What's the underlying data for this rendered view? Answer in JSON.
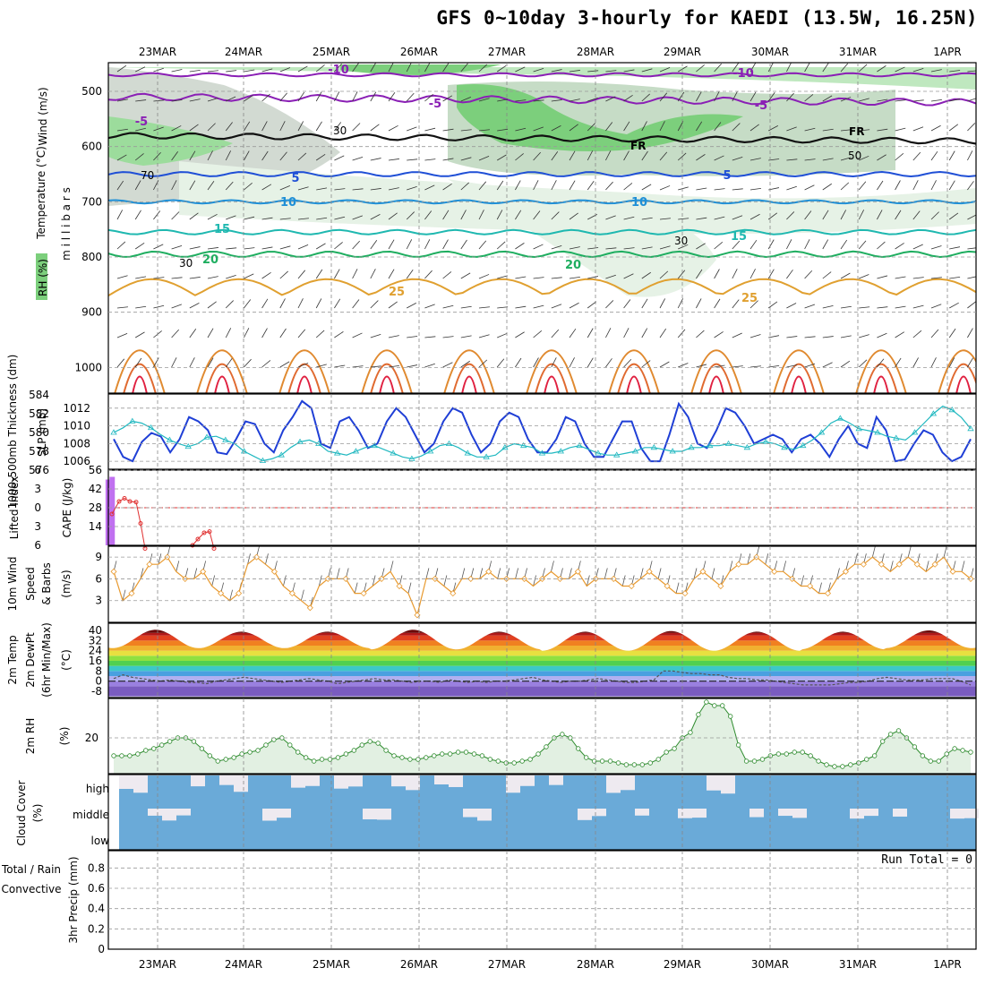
{
  "title": "GFS 0~10day 3-hourly for KAEDI (13.5W, 16.25N)",
  "dates": [
    "23MAR",
    "24MAR",
    "25MAR",
    "26MAR",
    "27MAR",
    "28MAR",
    "29MAR",
    "30MAR",
    "31MAR",
    "1APR"
  ],
  "run_total": "Run Total = 0",
  "panel_labels": {
    "upper_wind": "Wind (m/s)",
    "upper_temp": "Temperature (°C)",
    "upper_mb": "m i l l i b a r s",
    "upper_rh": "RH (%)",
    "thickness": "1000-500mb Thickness (dm)",
    "slp": "SLP (mb)",
    "lifted": "Lifted Index",
    "cape": "CAPE (J/kg)",
    "wind10": "10m Wind",
    "wind10b": "Speed",
    "wind10c": "& Barbs",
    "wind10u": "(m/s)",
    "t2m_a": "2m Temp",
    "t2m_b": "2m DewPt",
    "t2m_c": "(6hr Min/Max)",
    "t2m_u": "(°C)",
    "rh2m": "2m RH",
    "rh2m_u": "(%)",
    "cloud": "Cloud Cover",
    "cloud_u": "(%)",
    "precip_a": "Total / Rain",
    "precip_b": "Convective",
    "precip_c": "3hr Precip (mm)"
  },
  "contour_labels": {
    "m10": "-10",
    "m5": "-5",
    "p5": "5",
    "p10": "10",
    "p15": "15",
    "p20": "20",
    "p25": "25",
    "fr": "FR",
    "rh30": "30",
    "rh50": "50",
    "rh70": "70"
  },
  "colors": {
    "slp": "#1f3fd6",
    "thickness": "#20b8c0",
    "lifted": "#e03030",
    "cape": "#c070f0",
    "wind": "#e89a30",
    "rh2m": "#2e8b2e",
    "cloud": "#6aaad8",
    "cloud_gap": "#eeeaf0"
  },
  "chart_data": [
    {
      "panel": "upper-air cross section",
      "type": "heatmap",
      "ylabel": "millibars",
      "yticks": [
        500,
        600,
        700,
        800,
        900,
        1000
      ],
      "isotherms_C": [
        -10,
        -5,
        0,
        5,
        10,
        15,
        20,
        25
      ],
      "freezing_level_label": "FR",
      "rh_contours_pct": [
        30,
        50,
        70
      ]
    },
    {
      "panel": "1000-500mb thickness and SLP",
      "type": "line",
      "y_left_ticks": [
        576,
        578,
        580,
        582,
        584
      ],
      "y_right_ticks": [
        1006,
        1008,
        1010,
        1012
      ],
      "series": [
        {
          "name": "SLP (mb)",
          "axis": "right",
          "values": [
            1008.5,
            1006.5,
            1006.0,
            1008.2,
            1009.2,
            1008.8,
            1007.0,
            1008.5,
            1011.0,
            1010.5,
            1009.5,
            1007.0,
            1006.8,
            1008.5,
            1010.5,
            1010.2,
            1008.0,
            1007.0,
            1009.5,
            1011.0,
            1012.8,
            1012.0,
            1008.0,
            1007.5,
            1010.5,
            1011.0,
            1009.5,
            1007.5,
            1008.0,
            1010.5,
            1012.0,
            1011.0,
            1009.0,
            1007.0,
            1008.0,
            1010.5,
            1012.0,
            1011.5,
            1009.0,
            1007.0,
            1008.0,
            1010.5,
            1011.5,
            1011.0,
            1008.5,
            1007.0,
            1007.0,
            1008.5,
            1011.0,
            1010.5,
            1008.0,
            1006.5,
            1006.5,
            1008.5,
            1010.5,
            1010.5,
            1007.5,
            1006.0,
            1006.0,
            1009.0,
            1012.5,
            1011.0,
            1008.0,
            1007.5,
            1009.5,
            1012.0,
            1011.5,
            1010.0,
            1008.0,
            1008.5,
            1009.0,
            1008.5,
            1007.0,
            1008.5,
            1009.0,
            1008.0,
            1006.5,
            1008.5,
            1010.0,
            1008.0,
            1007.5,
            1011.0,
            1009.5,
            1006.0,
            1006.2,
            1008.0,
            1009.5,
            1009.0,
            1007.0,
            1006.0,
            1006.5,
            1008.5
          ]
        },
        {
          "name": "1000-500mb Thickness (dm)",
          "axis": "left",
          "values": [
            580.0,
            580.5,
            581.2,
            581.0,
            580.5,
            579.8,
            579.2,
            578.8,
            578.5,
            578.8,
            579.5,
            579.6,
            579.2,
            578.8,
            578.0,
            577.5,
            577.0,
            577.2,
            577.6,
            578.4,
            579.0,
            579.2,
            578.8,
            578.0,
            577.8,
            577.6,
            578.0,
            578.4,
            578.6,
            578.2,
            577.8,
            577.4,
            577.2,
            577.5,
            578.0,
            578.6,
            578.8,
            578.4,
            577.8,
            577.4,
            577.4,
            577.6,
            578.4,
            578.8,
            578.6,
            578.4,
            577.8,
            577.8,
            578.0,
            578.4,
            578.6,
            578.2,
            577.8,
            577.6,
            577.6,
            577.8,
            578.0,
            578.4,
            578.4,
            578.2,
            578.0,
            578.0,
            578.4,
            578.4,
            578.6,
            578.6,
            578.8,
            578.6,
            578.4,
            578.8,
            579.0,
            578.8,
            578.4,
            578.2,
            578.6,
            579.2,
            580.0,
            581.0,
            581.5,
            581.0,
            580.4,
            580.2,
            580.0,
            579.6,
            579.4,
            579.2,
            580.0,
            581.0,
            582.0,
            582.8,
            582.4,
            581.6,
            580.4
          ]
        }
      ]
    },
    {
      "panel": "Lifted Index and CAPE",
      "type": "bar",
      "y_left_ticks": [
        -6,
        -3,
        0,
        3,
        6
      ],
      "y_right_ticks": [
        14,
        28,
        42,
        56
      ],
      "cape_bars": [
        {
          "x": 1.35,
          "value": 49
        },
        {
          "x": 1.7,
          "value": 51
        }
      ],
      "lifted_index_segments": [
        [
          [
            0.2,
            1.0
          ],
          [
            0.6,
            -1.0
          ],
          [
            0.9,
            -1.5
          ],
          [
            1.2,
            -1.0
          ],
          [
            1.55,
            -0.9
          ],
          [
            1.8,
            2.5
          ],
          [
            2.05,
            6.5
          ]
        ],
        [
          [
            4.7,
            6.0
          ],
          [
            5.0,
            5.0
          ],
          [
            5.35,
            4.0
          ],
          [
            5.65,
            3.8
          ],
          [
            5.9,
            6.5
          ]
        ]
      ]
    },
    {
      "panel": "10m wind speed",
      "type": "line",
      "yticks": [
        3,
        6,
        9
      ],
      "values": [
        7,
        3,
        4,
        6,
        8,
        8,
        9,
        7,
        6,
        6,
        7,
        5,
        4,
        3,
        4,
        8,
        9,
        8,
        7,
        5,
        4,
        3,
        2,
        5,
        6,
        6,
        6,
        4,
        4,
        5,
        6,
        7,
        5,
        4,
        1,
        6,
        6,
        5,
        4,
        6,
        6,
        6,
        7,
        6,
        6,
        6,
        6,
        5,
        6,
        7,
        6,
        6,
        7,
        5,
        6,
        6,
        6,
        5,
        5,
        6,
        7,
        6,
        5,
        4,
        4,
        6,
        7,
        6,
        5,
        7,
        8,
        8,
        9,
        8,
        7,
        7,
        6,
        5,
        5,
        4,
        4,
        6,
        7,
        8,
        8,
        9,
        8,
        7,
        8,
        9,
        8,
        7,
        8,
        9,
        7,
        7,
        6
      ]
    },
    {
      "panel": "2m temperature and dewpoint",
      "type": "area",
      "yticks": [
        -8,
        0,
        8,
        16,
        24,
        32,
        40
      ],
      "temp_max": [
        40.5,
        39,
        39,
        40.5,
        39,
        39,
        39.5,
        39,
        39,
        40
      ],
      "temp_min": [
        26,
        26,
        26,
        25,
        25,
        24,
        24,
        24,
        25,
        26
      ],
      "dewpoint": [
        2,
        5,
        3,
        2,
        1,
        0,
        1,
        0,
        -1,
        -1,
        -2,
        0,
        1,
        2,
        3,
        2,
        1,
        0,
        -1,
        0,
        1,
        2,
        1,
        0,
        -2,
        -1,
        0,
        1,
        2,
        1,
        1,
        0,
        -1,
        0,
        0,
        -1,
        1,
        0,
        -1,
        0,
        -1,
        0,
        0,
        1,
        2,
        3,
        1,
        0,
        -1,
        0,
        0,
        1,
        2,
        1,
        0,
        -1,
        -1,
        0,
        1,
        8,
        8,
        7,
        6,
        6,
        5,
        5,
        3,
        2,
        2,
        1,
        1,
        0,
        -1,
        -2,
        -3,
        -3,
        -3,
        -3,
        -2,
        -1,
        -1,
        0,
        2,
        3,
        2,
        1,
        1,
        1,
        2,
        2,
        2,
        0,
        -3
      ]
    },
    {
      "panel": "2m RH",
      "type": "line",
      "yticks": [
        20
      ],
      "values": [
        10,
        10,
        10,
        11,
        13,
        14,
        16,
        18,
        20,
        20,
        18,
        14,
        10,
        7,
        8,
        9,
        11,
        12,
        13,
        16,
        19,
        20,
        16,
        12,
        9,
        7,
        8,
        8,
        9,
        11,
        13,
        16,
        18,
        17,
        13,
        10,
        9,
        8,
        8,
        9,
        10,
        11,
        11,
        12,
        12,
        11,
        10,
        8,
        7,
        6,
        6,
        7,
        8,
        11,
        15,
        20,
        22,
        20,
        14,
        9,
        7,
        7,
        7,
        6,
        5,
        5,
        5,
        6,
        8,
        12,
        14,
        20,
        23,
        33,
        40,
        38,
        38,
        32,
        16,
        7,
        7,
        8,
        10,
        11,
        11,
        12,
        12,
        10,
        7,
        5,
        4,
        4,
        5,
        6,
        8,
        10,
        18,
        22,
        24,
        20,
        15,
        10,
        7,
        7,
        11,
        14,
        13,
        12
      ]
    },
    {
      "panel": "Cloud Cover",
      "type": "heatmap",
      "levels": [
        "high",
        "middle",
        "low"
      ]
    },
    {
      "panel": "3hr Precip",
      "type": "bar",
      "yticks": [
        0,
        0.2,
        0.4,
        0.6,
        0.8
      ],
      "values": []
    }
  ]
}
